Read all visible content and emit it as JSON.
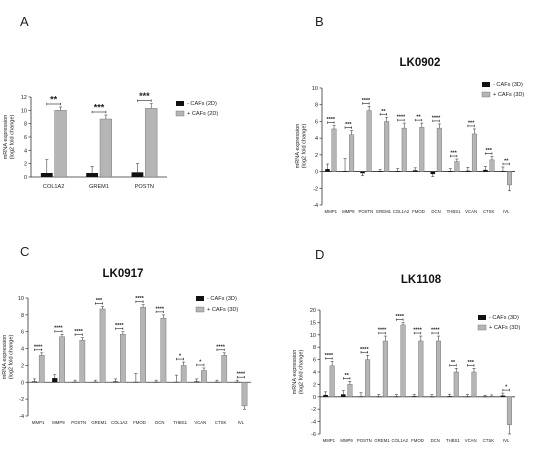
{
  "chart_data": [
    {
      "panel": "A",
      "type": "bar",
      "title": "",
      "ylabel": "mRNA expression\n(log2 fold change)",
      "ylim": [
        0,
        12
      ],
      "yticks": [
        0,
        2,
        4,
        6,
        8,
        10,
        12
      ],
      "categories": [
        "COL1A2",
        "GREM1",
        "POSTN"
      ],
      "series": [
        {
          "name": "- CAFs (2D)",
          "color": "#111111",
          "values": [
            0.6,
            0.6,
            0.7
          ],
          "errors": [
            2.0,
            1.0,
            1.3
          ]
        },
        {
          "name": "+ CAFs (2D)",
          "color": "#b5b5b5",
          "values": [
            10.0,
            8.7,
            10.3
          ],
          "errors": [
            0.5,
            0.6,
            0.7
          ]
        }
      ],
      "significance": [
        "**",
        "***",
        "***"
      ],
      "legend": "right"
    },
    {
      "panel": "B",
      "type": "bar",
      "title": "LK0902",
      "ylabel": "mRNA expression\n(log2 fold change)",
      "ylim": [
        -4,
        10
      ],
      "yticks": [
        -4,
        -2,
        0,
        2,
        4,
        6,
        8,
        10
      ],
      "categories": [
        "MMP1",
        "MMP9",
        "POSTN",
        "GREM1",
        "COL1A2",
        "FMOD",
        "DCN",
        "THBS1",
        "VCAN",
        "CTSK",
        "IVL"
      ],
      "series": [
        {
          "name": "- CAFs (3D)",
          "color": "#111111",
          "values": [
            0.3,
            0.05,
            -0.2,
            0.05,
            0.05,
            0.15,
            -0.3,
            0.05,
            0.1,
            0.2,
            0.05
          ],
          "errors": [
            0.6,
            1.5,
            0.3,
            0.2,
            0.3,
            0.3,
            0.3,
            0.3,
            0.4,
            0.4,
            0.5
          ]
        },
        {
          "name": "+ CAFs (3D)",
          "color": "#b5b5b5",
          "values": [
            5.1,
            4.4,
            7.3,
            6.0,
            5.2,
            5.3,
            5.2,
            1.2,
            4.5,
            1.4,
            -1.6
          ],
          "errors": [
            0.4,
            0.5,
            0.5,
            0.5,
            0.6,
            0.5,
            0.5,
            0.3,
            0.6,
            0.4,
            0.7
          ]
        }
      ],
      "significance": [
        "****",
        "***",
        "****",
        "**",
        "****",
        "**",
        "****",
        "***",
        "***",
        "***",
        "**"
      ],
      "legend": "top-right"
    },
    {
      "panel": "C",
      "type": "bar",
      "title": "LK0917",
      "ylabel": "mRNA expression\n(log2 fold change)",
      "ylim": [
        -4,
        10
      ],
      "yticks": [
        -4,
        -2,
        0,
        2,
        4,
        6,
        8,
        10
      ],
      "categories": [
        "MMP1",
        "MMP9",
        "POSTN",
        "GREM1",
        "COL1A2",
        "FMOD",
        "DCN",
        "THBS1",
        "VCAN",
        "CTSK",
        "IVL"
      ],
      "series": [
        {
          "name": "- CAFs (3D)",
          "color": "#111111",
          "values": [
            0.1,
            0.5,
            0.05,
            0.05,
            0.1,
            0.05,
            0.05,
            0.05,
            0.1,
            0.05,
            0.05
          ],
          "errors": [
            0.3,
            0.4,
            0.2,
            0.2,
            0.3,
            1.0,
            0.2,
            0.8,
            0.3,
            0.2,
            0.2
          ]
        },
        {
          "name": "+ CAFs (3D)",
          "color": "#b5b5b5",
          "values": [
            3.2,
            5.4,
            5.0,
            8.7,
            5.7,
            8.9,
            7.6,
            2.0,
            1.4,
            3.2,
            -2.8
          ],
          "errors": [
            0.3,
            0.3,
            0.3,
            0.3,
            0.3,
            0.3,
            0.4,
            0.4,
            0.3,
            0.3,
            0.4
          ]
        }
      ],
      "significance": [
        "****",
        "****",
        "****",
        "***",
        "****",
        "****",
        "****",
        "*",
        "*",
        "****",
        "****"
      ],
      "legend": "top-right"
    },
    {
      "panel": "D",
      "type": "bar",
      "title": "LK1108",
      "ylabel": "mRNA expression\n(log2 fold change)",
      "ylim": [
        -6,
        20
      ],
      "yticks": [
        -6,
        -4,
        -2,
        0,
        2,
        4,
        6,
        8,
        10,
        15,
        20
      ],
      "categories": [
        "MMP1",
        "MMP9",
        "POSTN",
        "GREM1",
        "COL1A2",
        "FMOD",
        "DCN",
        "THBS1",
        "VCAN",
        "CTSK",
        "IVL"
      ],
      "series": [
        {
          "name": "- CAFs (3D)",
          "color": "#111111",
          "values": [
            0.3,
            0.4,
            0.05,
            0.05,
            0.05,
            0.1,
            0.05,
            0.1,
            0.05,
            0.05,
            0.2
          ],
          "errors": [
            0.5,
            0.6,
            0.6,
            0.3,
            0.3,
            0.3,
            0.3,
            0.3,
            0.3,
            0.2,
            0.4
          ]
        },
        {
          "name": "+ CAFs (3D)",
          "color": "#b5b5b5",
          "values": [
            5.0,
            2.0,
            6.0,
            9.0,
            14.0,
            9.0,
            9.0,
            4.0,
            4.0,
            0.1,
            -4.5
          ],
          "errors": [
            0.7,
            0.5,
            0.7,
            0.8,
            0.9,
            0.8,
            0.8,
            0.6,
            0.6,
            0.2,
            1.5
          ]
        }
      ],
      "significance": [
        "****",
        "**",
        "****",
        "****",
        "****",
        "****",
        "****",
        "**",
        "***",
        "",
        "*"
      ],
      "legend": "top-right"
    }
  ]
}
